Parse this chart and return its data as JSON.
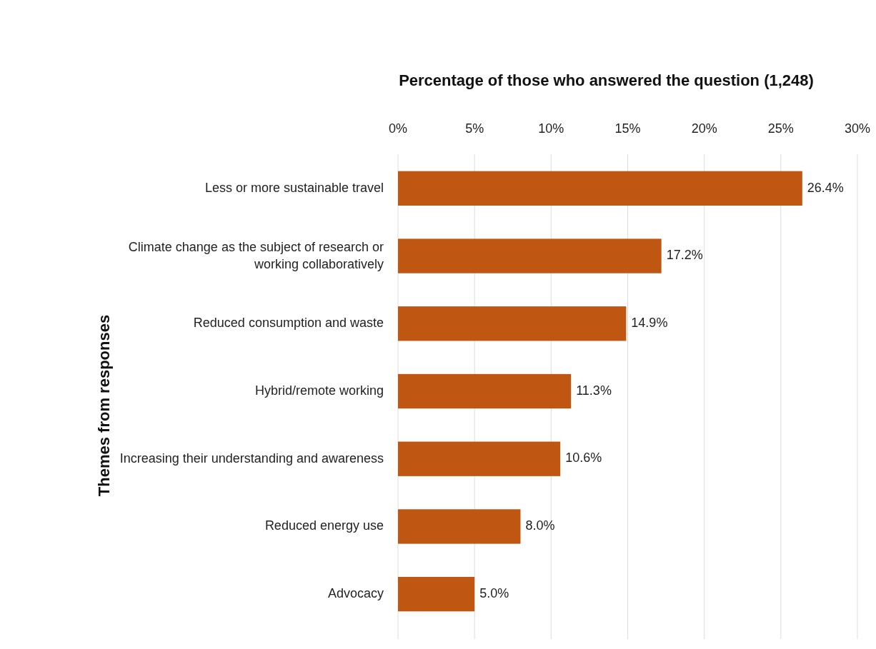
{
  "chart_data": {
    "type": "bar",
    "orientation": "horizontal",
    "xlabel": "Percentage of those who answered the question (1,248)",
    "ylabel": "Themes from responses",
    "categories": [
      "Less or more sustainable travel",
      "Climate change as the subject of research or working collaboratively",
      "Reduced consumption and waste",
      "Hybrid/remote working",
      "Increasing their understanding and awareness",
      "Reduced energy use",
      "Advocacy"
    ],
    "values": [
      26.4,
      17.2,
      14.9,
      11.3,
      10.6,
      8.0,
      5.0
    ],
    "value_labels": [
      "26.4%",
      "17.2%",
      "14.9%",
      "11.3%",
      "10.6%",
      "8.0%",
      "5.0%"
    ],
    "color": "#bf5713",
    "xlim": [
      0,
      30
    ],
    "xticks": [
      {
        "value": 0,
        "label": "0%"
      },
      {
        "value": 5,
        "label": "5%"
      },
      {
        "value": 10,
        "label": "10%"
      },
      {
        "value": 15,
        "label": "15%"
      },
      {
        "value": 20,
        "label": "20%"
      },
      {
        "value": 25,
        "label": "25%"
      },
      {
        "value": 30,
        "label": "30%"
      }
    ],
    "grid": "x"
  }
}
